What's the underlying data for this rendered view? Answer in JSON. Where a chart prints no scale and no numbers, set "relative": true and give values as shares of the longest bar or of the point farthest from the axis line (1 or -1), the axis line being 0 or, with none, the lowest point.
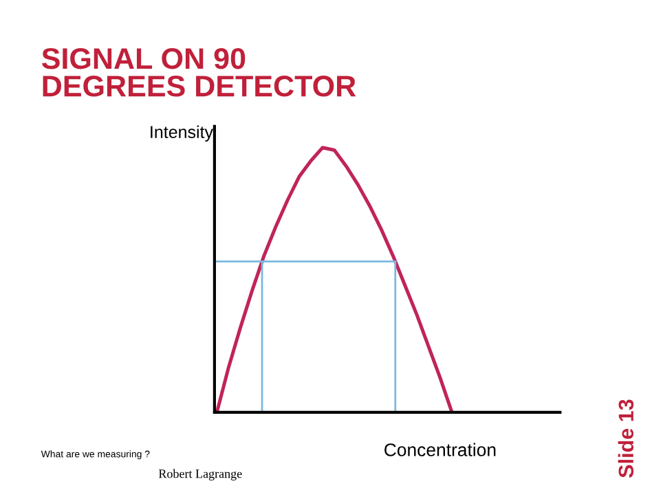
{
  "chart_data": {
    "type": "line",
    "title": "SIGNAL ON 90\nDEGREES DETECTOR",
    "xlabel": "Concentration",
    "ylabel": "Intensity",
    "relative": true,
    "categories": [
      null,
      null,
      null,
      null,
      null,
      null,
      null,
      null,
      null,
      null,
      null,
      null,
      null,
      null,
      null,
      null,
      null,
      null,
      null,
      null,
      null,
      null,
      null,
      null,
      null,
      null,
      null,
      null,
      null,
      null
    ],
    "series": [
      {
        "color": "#c0245a",
        "values": [
          0,
          0.17,
          0.32,
          0.46,
          0.59,
          0.7,
          0.8,
          0.89,
          0.95,
          1,
          0.99,
          0.93,
          0.86,
          0.78,
          0.69,
          0.59,
          0.48,
          0.37,
          0.25,
          0.13,
          0,
          null,
          null,
          null,
          null,
          null,
          null,
          null,
          null,
          null
        ]
      }
    ],
    "ref_lines": [
      {
        "axis": "y",
        "value": 0.57,
        "color": "#7ab8e0"
      }
    ],
    "annotations": [
      "What are we measuring ?",
      "Robert Lagrange",
      "Slide 13"
    ],
    "grid": false,
    "legend": false,
    "marker": "none",
    "line_style": "solid"
  }
}
